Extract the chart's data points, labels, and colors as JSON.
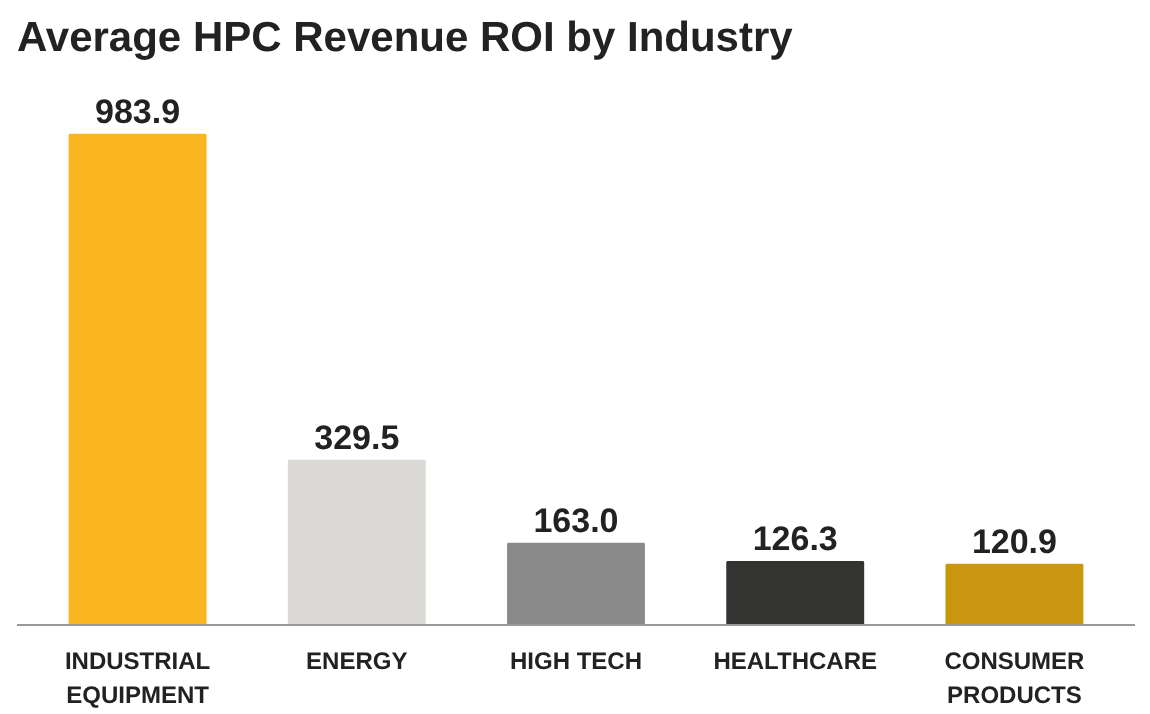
{
  "chart_data": {
    "type": "bar",
    "title": "Average HPC Revenue ROI by Industry",
    "categories": [
      "INDUSTRIAL\nEQUIPMENT",
      "ENERGY",
      "HIGH TECH",
      "HEALTHCARE",
      "CONSUMER\nPRODUCTS"
    ],
    "values": [
      983.9,
      329.5,
      163.0,
      126.3,
      120.9
    ],
    "colors": [
      "#fbb51f",
      "#dbdad6",
      "#8a8a8a",
      "#333331",
      "#c9960f"
    ],
    "value_labels": [
      "983.9",
      "329.5",
      "163.0",
      "126.3",
      "120.9"
    ],
    "grid": false
  }
}
